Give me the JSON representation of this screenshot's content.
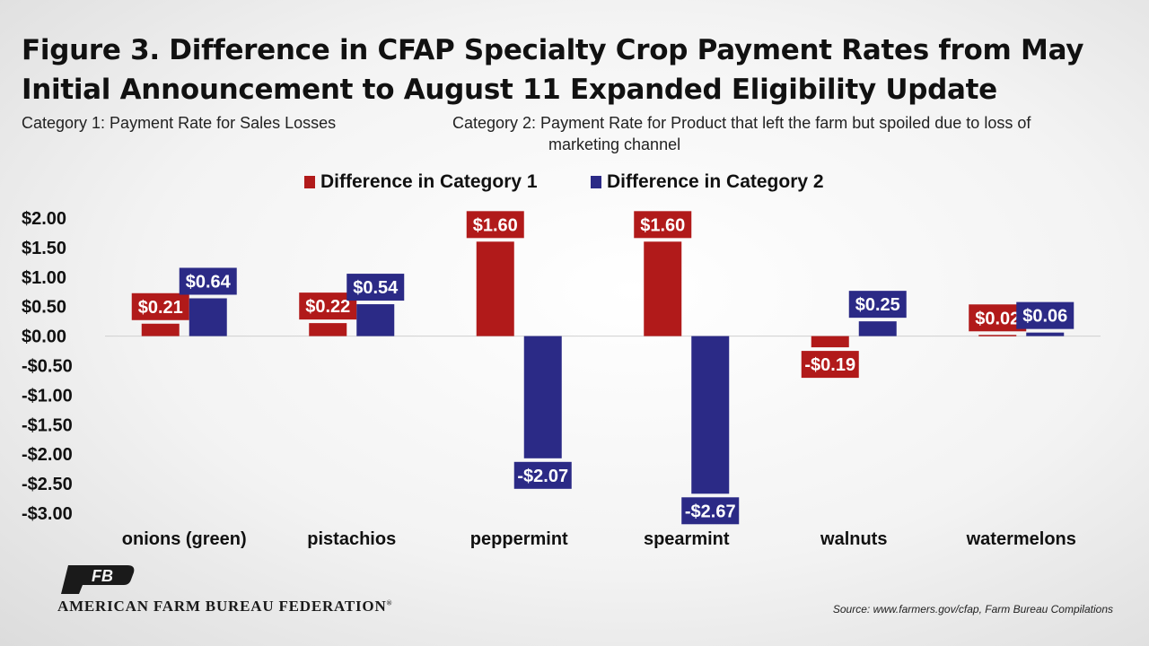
{
  "title_lines": [
    "Figure 3. Difference in CFAP Specialty Crop Payment Rates from May",
    "Initial Announcement to August 11 Expanded Eligibility Update"
  ],
  "category_notes": {
    "cat1": "Category 1:  Payment Rate for Sales Losses",
    "cat2_label": "Category 2:  Payment Rate for Product that left the farm but spoiled due to loss of",
    "cat2_cont": "marketing channel"
  },
  "source": "Source: www.farmers.gov/cfap, Farm Bureau Compilations",
  "organization": "AMERICAN FARM BUREAU FEDERATION",
  "registered_mark": "®",
  "logo_letters": "FB",
  "colors": {
    "series1": "#b11a1a",
    "series2": "#2b2a86"
  },
  "chart_data": {
    "type": "bar",
    "categories": [
      "onions (green)",
      "pistachios",
      "peppermint",
      "spearmint",
      "walnuts",
      "watermelons"
    ],
    "series": [
      {
        "name": "Difference in Category 1",
        "values": [
          0.21,
          0.22,
          1.6,
          1.6,
          -0.19,
          0.02
        ],
        "labels": [
          "$0.21",
          "$0.22",
          "$1.60",
          "$1.60",
          "-$0.19",
          "$0.02"
        ]
      },
      {
        "name": "Difference in Category 2",
        "values": [
          0.64,
          0.54,
          -2.07,
          -2.67,
          0.25,
          0.06
        ],
        "labels": [
          "$0.64",
          "$0.54",
          "-$2.07",
          "-$2.67",
          "$0.25",
          "$0.06"
        ]
      }
    ],
    "ylim": [
      -3.0,
      2.0
    ],
    "yticks": [
      2.0,
      1.5,
      1.0,
      0.5,
      0.0,
      -0.5,
      -1.0,
      -1.5,
      -2.0,
      -2.5,
      -3.0
    ],
    "ytick_labels": [
      "$2.00",
      "$1.50",
      "$1.00",
      "$0.50",
      "$0.00",
      "-$0.50",
      "-$1.00",
      "-$1.50",
      "-$2.00",
      "-$2.50",
      "-$3.00"
    ],
    "legend_position": "top-center",
    "grid": false
  }
}
